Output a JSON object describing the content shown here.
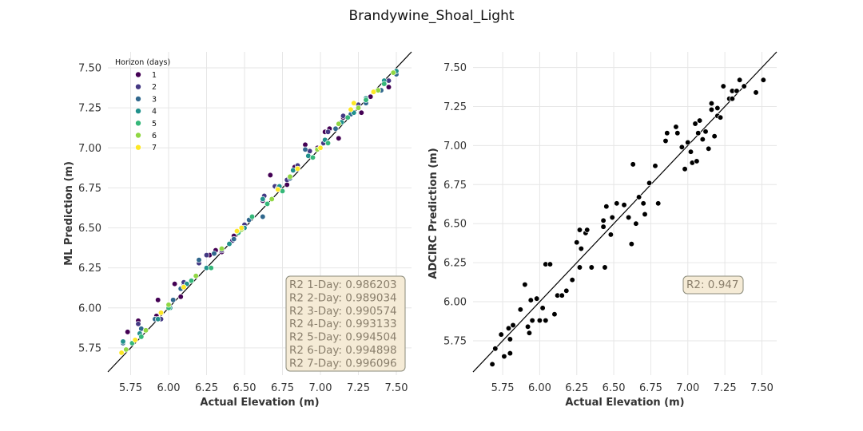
{
  "figure": {
    "suptitle": "Brandywine_Shoal_Light"
  },
  "colors": {
    "horizons": [
      "#440154",
      "#443983",
      "#31688e",
      "#21918c",
      "#35b779",
      "#90d743",
      "#fde725"
    ],
    "adcirc_points": "#000000",
    "box_fill": "#f5ebd6",
    "box_edge": "#8a8a7a"
  },
  "chart_data": [
    {
      "type": "scatter",
      "xlabel": "Actual Elevation (m)",
      "ylabel": "ML Prediction (m)",
      "xlim": [
        5.6,
        7.6
      ],
      "ylim": [
        5.58,
        7.6
      ],
      "xticks": [
        "5.75",
        "6.00",
        "6.25",
        "6.50",
        "6.75",
        "7.00",
        "7.25",
        "7.50"
      ],
      "yticks": [
        "5.75",
        "6.00",
        "6.25",
        "6.50",
        "6.75",
        "7.00",
        "7.25",
        "7.50"
      ],
      "grid": true,
      "identity_line": true,
      "legend": {
        "title": "Horizon (days)",
        "placement": "upper-left",
        "entries": [
          "1",
          "2",
          "3",
          "4",
          "5",
          "6",
          "7"
        ]
      },
      "annotation_lines": [
        "R2 1-Day: 0.986203",
        "R2 2-Day: 0.989034",
        "R2 3-Day: 0.990574",
        "R2 4-Day: 0.993133",
        "R2 5-Day: 0.994504",
        "R2 6-Day: 0.994898",
        "R2 7-Day: 0.996096"
      ],
      "series": [
        {
          "name": "1",
          "points": [
            [
              5.73,
              5.85
            ],
            [
              5.8,
              5.92
            ],
            [
              5.92,
              5.95
            ],
            [
              5.93,
              6.05
            ],
            [
              6.04,
              6.15
            ],
            [
              6.08,
              6.07
            ],
            [
              6.1,
              6.14
            ],
            [
              6.27,
              6.33
            ],
            [
              6.31,
              6.36
            ],
            [
              6.35,
              6.35
            ],
            [
              6.43,
              6.45
            ],
            [
              6.62,
              6.67
            ],
            [
              6.67,
              6.83
            ],
            [
              6.78,
              6.77
            ],
            [
              6.83,
              6.88
            ],
            [
              6.9,
              7.02
            ],
            [
              6.98,
              7.0
            ],
            [
              7.03,
              7.1
            ],
            [
              7.06,
              7.12
            ],
            [
              7.12,
              7.06
            ],
            [
              7.15,
              7.19
            ],
            [
              7.27,
              7.22
            ],
            [
              7.33,
              7.32
            ],
            [
              7.45,
              7.38
            ]
          ]
        },
        {
          "name": "2",
          "points": [
            [
              5.8,
              5.9
            ],
            [
              5.95,
              5.93
            ],
            [
              6.0,
              6.02
            ],
            [
              6.1,
              6.16
            ],
            [
              6.2,
              6.28
            ],
            [
              6.25,
              6.33
            ],
            [
              6.35,
              6.36
            ],
            [
              6.42,
              6.42
            ],
            [
              6.5,
              6.52
            ],
            [
              6.63,
              6.7
            ],
            [
              6.7,
              6.76
            ],
            [
              6.78,
              6.8
            ],
            [
              6.85,
              6.89
            ],
            [
              6.93,
              6.98
            ],
            [
              7.02,
              7.03
            ],
            [
              7.05,
              7.1
            ],
            [
              7.15,
              7.2
            ],
            [
              7.25,
              7.27
            ],
            [
              7.35,
              7.35
            ],
            [
              7.45,
              7.42
            ]
          ]
        },
        {
          "name": "3",
          "points": [
            [
              5.7,
              5.78
            ],
            [
              5.82,
              5.87
            ],
            [
              5.91,
              5.93
            ],
            [
              6.03,
              6.05
            ],
            [
              6.08,
              6.12
            ],
            [
              6.2,
              6.3
            ],
            [
              6.3,
              6.34
            ],
            [
              6.43,
              6.43
            ],
            [
              6.53,
              6.55
            ],
            [
              6.62,
              6.57
            ],
            [
              6.72,
              6.75
            ],
            [
              6.8,
              6.81
            ],
            [
              6.9,
              6.99
            ],
            [
              7.0,
              7.0
            ],
            [
              7.1,
              7.12
            ],
            [
              7.2,
              7.21
            ],
            [
              7.3,
              7.28
            ],
            [
              7.4,
              7.36
            ],
            [
              7.5,
              7.46
            ]
          ]
        },
        {
          "name": "4",
          "points": [
            [
              5.7,
              5.79
            ],
            [
              5.81,
              5.84
            ],
            [
              5.93,
              5.93
            ],
            [
              6.01,
              6.0
            ],
            [
              6.12,
              6.15
            ],
            [
              6.25,
              6.25
            ],
            [
              6.4,
              6.4
            ],
            [
              6.5,
              6.5
            ],
            [
              6.62,
              6.68
            ],
            [
              6.73,
              6.76
            ],
            [
              6.82,
              6.86
            ],
            [
              6.92,
              6.95
            ],
            [
              7.03,
              7.05
            ],
            [
              7.14,
              7.16
            ],
            [
              7.22,
              7.22
            ],
            [
              7.3,
              7.31
            ],
            [
              7.42,
              7.42
            ],
            [
              7.5,
              7.48
            ]
          ]
        },
        {
          "name": "5",
          "points": [
            [
              5.76,
              5.78
            ],
            [
              5.82,
              5.82
            ],
            [
              6.0,
              6.0
            ],
            [
              6.15,
              6.17
            ],
            [
              6.28,
              6.25
            ],
            [
              6.46,
              6.47
            ],
            [
              6.55,
              6.57
            ],
            [
              6.65,
              6.65
            ],
            [
              6.75,
              6.73
            ],
            [
              6.95,
              6.94
            ],
            [
              7.05,
              7.03
            ],
            [
              7.18,
              7.19
            ],
            [
              7.3,
              7.3
            ],
            [
              7.42,
              7.4
            ]
          ]
        },
        {
          "name": "6",
          "points": [
            [
              5.72,
              5.74
            ],
            [
              5.85,
              5.86
            ],
            [
              6.0,
              6.02
            ],
            [
              6.18,
              6.2
            ],
            [
              6.35,
              6.37
            ],
            [
              6.48,
              6.49
            ],
            [
              6.68,
              6.68
            ],
            [
              6.8,
              6.82
            ],
            [
              6.98,
              6.99
            ],
            [
              7.12,
              7.15
            ],
            [
              7.25,
              7.25
            ],
            [
              7.38,
              7.36
            ],
            [
              7.48,
              7.47
            ]
          ]
        },
        {
          "name": "7",
          "points": [
            [
              5.69,
              5.72
            ],
            [
              5.78,
              5.8
            ],
            [
              5.95,
              5.97
            ],
            [
              6.1,
              6.13
            ],
            [
              6.45,
              6.48
            ],
            [
              6.48,
              6.5
            ],
            [
              6.72,
              6.74
            ],
            [
              6.85,
              6.87
            ],
            [
              7.0,
              7.0
            ],
            [
              7.2,
              7.24
            ],
            [
              7.22,
              7.28
            ],
            [
              7.35,
              7.35
            ]
          ]
        }
      ]
    },
    {
      "type": "scatter",
      "xlabel": "Actual Elevation (m)",
      "ylabel": "ADCIRC Prediction (m)",
      "xlim": [
        5.55,
        7.6
      ],
      "ylim": [
        5.53,
        7.6
      ],
      "xticks": [
        "5.75",
        "6.00",
        "6.25",
        "6.50",
        "6.75",
        "7.00",
        "7.25",
        "7.50"
      ],
      "yticks": [
        "5.75",
        "6.00",
        "6.25",
        "6.50",
        "6.75",
        "7.00",
        "7.25",
        "7.50"
      ],
      "grid": true,
      "identity_line": true,
      "annotation_lines": [
        "R2: 0.947"
      ],
      "series": [
        {
          "name": "",
          "points": [
            [
              5.68,
              5.6
            ],
            [
              5.7,
              5.7
            ],
            [
              5.74,
              5.79
            ],
            [
              5.76,
              5.65
            ],
            [
              5.79,
              5.83
            ],
            [
              5.8,
              5.67
            ],
            [
              5.8,
              5.76
            ],
            [
              5.82,
              5.85
            ],
            [
              5.87,
              5.95
            ],
            [
              5.9,
              6.11
            ],
            [
              5.92,
              5.84
            ],
            [
              5.93,
              5.8
            ],
            [
              5.94,
              6.01
            ],
            [
              5.95,
              5.88
            ],
            [
              5.98,
              6.02
            ],
            [
              6.0,
              5.88
            ],
            [
              6.02,
              5.96
            ],
            [
              6.04,
              6.24
            ],
            [
              6.04,
              5.88
            ],
            [
              6.07,
              6.24
            ],
            [
              6.1,
              5.92
            ],
            [
              6.12,
              6.04
            ],
            [
              6.15,
              6.04
            ],
            [
              6.18,
              6.07
            ],
            [
              6.22,
              6.14
            ],
            [
              6.25,
              6.38
            ],
            [
              6.27,
              6.46
            ],
            [
              6.27,
              6.22
            ],
            [
              6.28,
              6.34
            ],
            [
              6.31,
              6.44
            ],
            [
              6.32,
              6.46
            ],
            [
              6.35,
              6.22
            ],
            [
              6.43,
              6.48
            ],
            [
              6.43,
              6.52
            ],
            [
              6.44,
              6.22
            ],
            [
              6.45,
              6.61
            ],
            [
              6.48,
              6.43
            ],
            [
              6.49,
              6.54
            ],
            [
              6.52,
              6.63
            ],
            [
              6.57,
              6.62
            ],
            [
              6.6,
              6.54
            ],
            [
              6.62,
              6.37
            ],
            [
              6.63,
              6.88
            ],
            [
              6.65,
              6.5
            ],
            [
              6.67,
              6.67
            ],
            [
              6.7,
              6.63
            ],
            [
              6.71,
              6.56
            ],
            [
              6.74,
              6.76
            ],
            [
              6.78,
              6.87
            ],
            [
              6.8,
              6.63
            ],
            [
              6.85,
              7.03
            ],
            [
              6.86,
              7.08
            ],
            [
              6.92,
              7.12
            ],
            [
              6.93,
              7.08
            ],
            [
              6.96,
              6.99
            ],
            [
              6.98,
              6.85
            ],
            [
              7.0,
              7.02
            ],
            [
              7.02,
              6.96
            ],
            [
              7.03,
              6.89
            ],
            [
              7.05,
              7.14
            ],
            [
              7.06,
              6.9
            ],
            [
              7.07,
              7.08
            ],
            [
              7.08,
              7.16
            ],
            [
              7.1,
              7.04
            ],
            [
              7.12,
              7.09
            ],
            [
              7.14,
              6.98
            ],
            [
              7.16,
              7.23
            ],
            [
              7.16,
              7.27
            ],
            [
              7.18,
              7.06
            ],
            [
              7.2,
              7.24
            ],
            [
              7.2,
              7.19
            ],
            [
              7.22,
              7.18
            ],
            [
              7.24,
              7.38
            ],
            [
              7.28,
              7.3
            ],
            [
              7.3,
              7.35
            ],
            [
              7.3,
              7.3
            ],
            [
              7.33,
              7.35
            ],
            [
              7.35,
              7.42
            ],
            [
              7.38,
              7.38
            ],
            [
              7.46,
              7.34
            ],
            [
              7.51,
              7.42
            ]
          ]
        }
      ]
    }
  ]
}
